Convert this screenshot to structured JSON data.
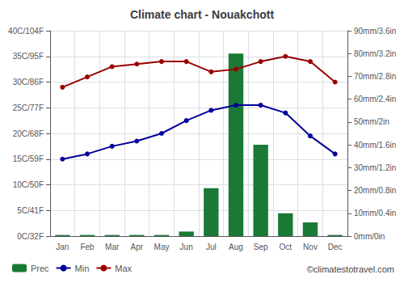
{
  "chart_data": {
    "type": "bar",
    "title": "Climate chart - Nouakchott",
    "categories": [
      "Jan",
      "Feb",
      "Mar",
      "Apr",
      "May",
      "Jun",
      "Jul",
      "Aug",
      "Sep",
      "Oct",
      "Nov",
      "Dec"
    ],
    "series": [
      {
        "name": "Prec",
        "type": "bar",
        "axis": "y2",
        "color": "#1a7a35",
        "values": [
          0.5,
          0.5,
          0.5,
          0.5,
          0.5,
          2,
          21,
          80,
          40,
          10,
          6,
          0.5
        ]
      },
      {
        "name": "Min",
        "type": "line",
        "marker": "circle",
        "color": "#000099",
        "values": [
          15,
          16,
          17.5,
          18.5,
          20,
          22.5,
          24.5,
          25.5,
          25.5,
          24,
          19.5,
          16
        ]
      },
      {
        "name": "Max",
        "type": "line",
        "marker": "circle",
        "color": "#990000",
        "values": [
          29,
          31,
          33,
          33.5,
          34,
          34,
          32,
          32.5,
          34,
          35,
          34,
          30
        ]
      }
    ],
    "ylim": [
      0,
      40
    ],
    "yticks": [
      {
        "value": 0,
        "label": "0C/32F"
      },
      {
        "value": 5,
        "label": "5C/41F"
      },
      {
        "value": 10,
        "label": "10C/50F"
      },
      {
        "value": 15,
        "label": "15C/59F"
      },
      {
        "value": 20,
        "label": "20C/68F"
      },
      {
        "value": 25,
        "label": "25C/77F"
      },
      {
        "value": 30,
        "label": "30C/86F"
      },
      {
        "value": 35,
        "label": "35C/95F"
      },
      {
        "value": 40,
        "label": "40C/104F"
      }
    ],
    "y2lim": [
      0,
      90
    ],
    "y2ticks": [
      {
        "value": 0,
        "label": "0mm/0in"
      },
      {
        "value": 10,
        "label": "10mm/0.4in"
      },
      {
        "value": 20,
        "label": "20mm/0.8in"
      },
      {
        "value": 30,
        "label": "30mm/1.2in"
      },
      {
        "value": 40,
        "label": "40mm/1.6in"
      },
      {
        "value": 50,
        "label": "50mm/2in"
      },
      {
        "value": 60,
        "label": "60mm/2.4in"
      },
      {
        "value": 70,
        "label": "70mm/2.8in"
      },
      {
        "value": 80,
        "label": "80mm/3.2in"
      },
      {
        "value": 90,
        "label": "90mm/3.6in"
      }
    ],
    "grid": true,
    "legend": "lower left",
    "annotations": [
      "©climatestotravel.com"
    ]
  }
}
